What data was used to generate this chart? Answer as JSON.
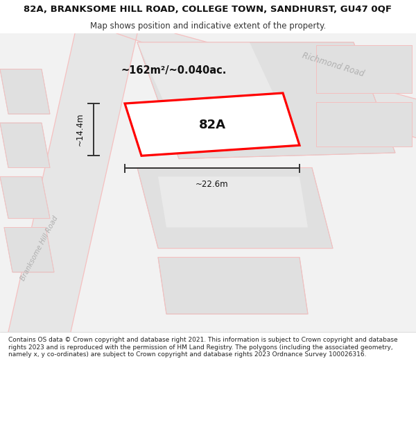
{
  "title": "82A, BRANKSOME HILL ROAD, COLLEGE TOWN, SANDHURST, GU47 0QF",
  "subtitle": "Map shows position and indicative extent of the property.",
  "footer": "Contains OS data © Crown copyright and database right 2021. This information is subject to Crown copyright and database rights 2023 and is reproduced with the permission of HM Land Registry. The polygons (including the associated geometry, namely x, y co-ordinates) are subject to Crown copyright and database rights 2023 Ordnance Survey 100026316.",
  "background_color": "#ffffff",
  "map_bg": "#f2f2f2",
  "road_fill": "#e6e6e6",
  "road_line": "#f5c0c0",
  "bld_fill": "#e0e0e0",
  "bld_line": "#cccccc",
  "highlight_fill": "#ffffff",
  "highlight_outline": "#ff0000",
  "road_label_color": "#b0b0b0",
  "dim_color": "#333333",
  "label_82A": "82A",
  "area_label": "~162m²/~0.040ac.",
  "dim_width": "~22.6m",
  "dim_height": "~14.4m",
  "richmond_road_label": "Richmond Road",
  "branksome_road_label": "Branksome Hill Road",
  "title_fontsize": 9.5,
  "subtitle_fontsize": 8.5,
  "footer_fontsize": 6.5
}
